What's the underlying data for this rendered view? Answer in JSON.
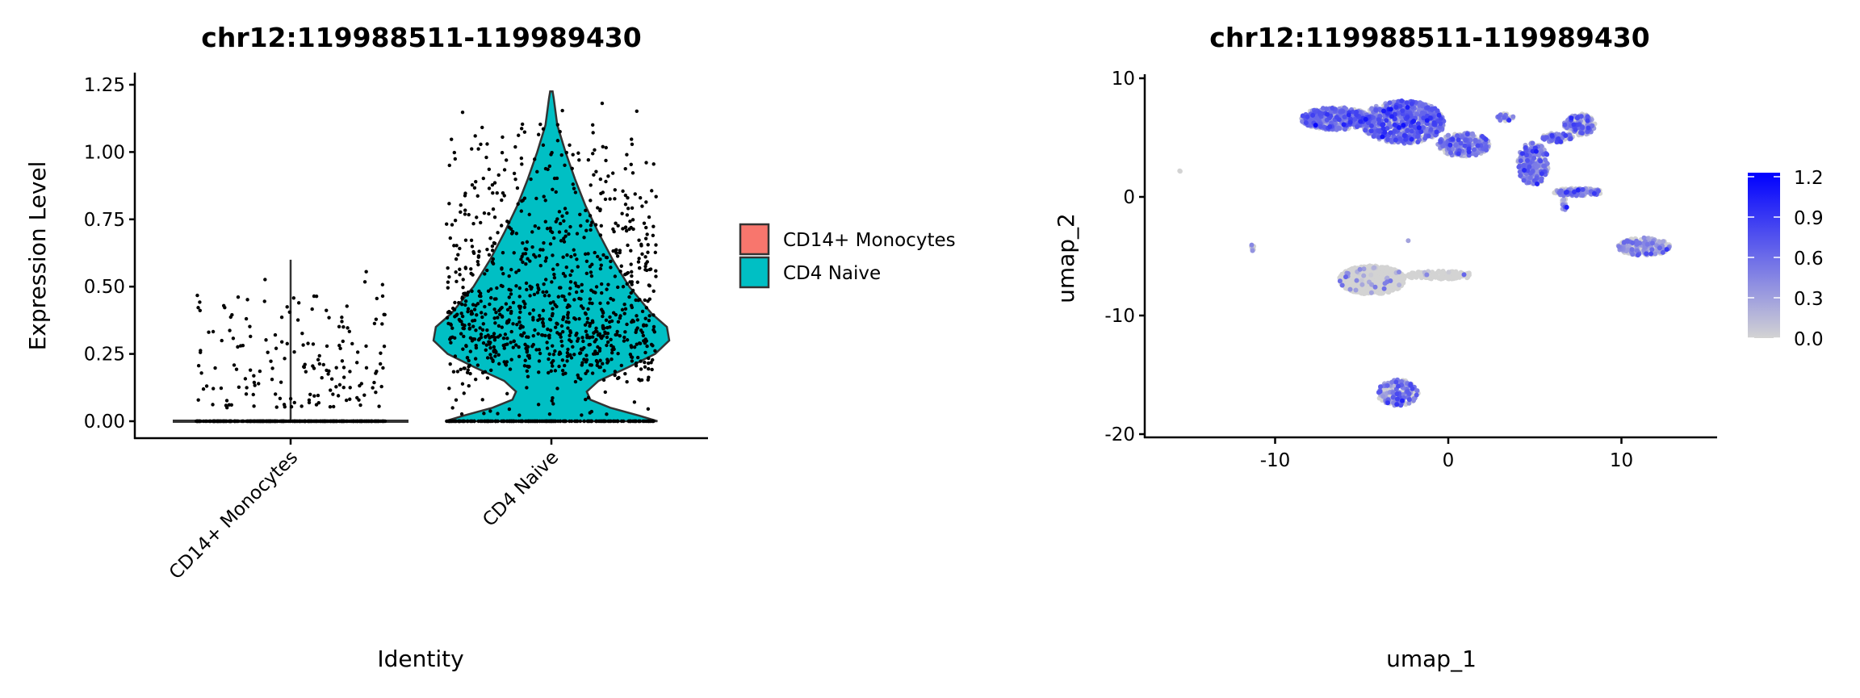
{
  "chart_data": [
    {
      "type": "violin",
      "title": "chr12:119988511-119989430",
      "xlabel": "Identity",
      "ylabel": "Expression Level",
      "ylim": [
        -0.05,
        1.28
      ],
      "yticks": [
        0,
        0.25,
        0.5,
        0.75,
        1.0,
        1.25
      ],
      "ytick_labels": [
        "0.00",
        "0.25",
        "0.50",
        "0.75",
        "1.00",
        "1.25"
      ],
      "categories": [
        "CD14+ Monocytes",
        "CD4 Naive"
      ],
      "colors": [
        "#F8766D",
        "#00BFC4"
      ],
      "legend": {
        "position": "right",
        "entries": [
          "CD14+ Monocytes",
          "CD4 Naive"
        ]
      },
      "groups": [
        {
          "name": "CD14+ Monocytes",
          "n_zero": 300,
          "n_nonzero": 170,
          "nonzero_range": [
            0.05,
            0.6
          ],
          "max": 0.6,
          "density": [
            [
              0,
              1.0
            ],
            [
              0.005,
              0.02
            ],
            [
              0.6,
              0.02
            ]
          ]
        },
        {
          "name": "CD4 Naive",
          "n_zero": 220,
          "n_nonzero": 1000,
          "max": 1.225,
          "density": [
            [
              0,
              0.9
            ],
            [
              0.02,
              0.75
            ],
            [
              0.05,
              0.5
            ],
            [
              0.08,
              0.33
            ],
            [
              0.11,
              0.3
            ],
            [
              0.15,
              0.4
            ],
            [
              0.2,
              0.65
            ],
            [
              0.25,
              0.88
            ],
            [
              0.3,
              1.0
            ],
            [
              0.35,
              0.98
            ],
            [
              0.4,
              0.85
            ],
            [
              0.5,
              0.66
            ],
            [
              0.6,
              0.52
            ],
            [
              0.7,
              0.4
            ],
            [
              0.8,
              0.29
            ],
            [
              0.9,
              0.2
            ],
            [
              1.0,
              0.12
            ],
            [
              1.1,
              0.05
            ],
            [
              1.2,
              0.02
            ],
            [
              1.225,
              0.01
            ]
          ]
        }
      ]
    },
    {
      "type": "scatter",
      "title": "chr12:119988511-119989430",
      "xlabel": "umap_1",
      "ylabel": "umap_2",
      "xlim": [
        -17.6,
        15.6
      ],
      "ylim": [
        -20.3,
        10.3
      ],
      "xticks": [
        -10,
        0,
        10
      ],
      "xtick_labels": [
        "-10",
        "0",
        "10"
      ],
      "yticks": [
        10,
        0,
        -10,
        -20
      ],
      "ytick_labels": [
        "10",
        "0",
        "-10",
        "-20"
      ],
      "colorbar": {
        "low": "#D3D3D3",
        "high": "#0000FF",
        "range": [
          0,
          1.23
        ],
        "ticks": [
          0,
          0.3,
          0.6,
          0.9,
          1.2
        ],
        "tick_labels": [
          "0.0",
          "0.3",
          "0.6",
          "0.9",
          "1.2"
        ],
        "position": "right"
      },
      "clusters": [
        {
          "center": [
            -6.5,
            6.6
          ],
          "radius": [
            2.0,
            0.95
          ],
          "n": 500,
          "p_expr": 0.7,
          "mean": 0.5
        },
        {
          "center": [
            -2.6,
            6.3
          ],
          "radius": [
            2.4,
            1.8
          ],
          "n": 900,
          "p_expr": 0.7,
          "mean": 0.5
        },
        {
          "center": [
            0.9,
            4.4
          ],
          "radius": [
            1.5,
            1.0
          ],
          "n": 250,
          "p_expr": 0.65,
          "mean": 0.45
        },
        {
          "center": [
            3.3,
            6.7
          ],
          "radius": [
            0.45,
            0.35
          ],
          "n": 30,
          "p_expr": 0.5,
          "mean": 0.4
        },
        {
          "center": [
            4.9,
            2.8
          ],
          "radius": [
            0.9,
            1.8
          ],
          "n": 300,
          "p_expr": 0.6,
          "mean": 0.45
        },
        {
          "center": [
            6.3,
            5.0
          ],
          "radius": [
            0.9,
            0.4
          ],
          "n": 60,
          "p_expr": 0.6,
          "mean": 0.45
        },
        {
          "center": [
            7.6,
            6.1
          ],
          "radius": [
            0.9,
            0.9
          ],
          "n": 200,
          "p_expr": 0.55,
          "mean": 0.4
        },
        {
          "center": [
            7.5,
            0.4
          ],
          "radius": [
            1.4,
            0.35
          ],
          "n": 150,
          "p_expr": 0.55,
          "mean": 0.4
        },
        {
          "center": [
            6.7,
            -0.6
          ],
          "radius": [
            0.2,
            0.5
          ],
          "n": 20,
          "p_expr": 0.6,
          "mean": 0.45
        },
        {
          "center": [
            11.3,
            -4.2
          ],
          "radius": [
            1.5,
            0.75
          ],
          "n": 300,
          "p_expr": 0.45,
          "mean": 0.3
        },
        {
          "center": [
            -4.4,
            -7.0
          ],
          "radius": [
            1.9,
            1.2
          ],
          "n": 900,
          "p_expr": 0.03,
          "mean": 0.3
        },
        {
          "center": [
            -0.5,
            -6.6
          ],
          "radius": [
            2.1,
            0.35
          ],
          "n": 150,
          "p_expr": 0.03,
          "mean": 0.3
        },
        {
          "center": [
            -2.9,
            -16.5
          ],
          "radius": [
            1.2,
            1.1
          ],
          "n": 200,
          "p_expr": 0.6,
          "mean": 0.45
        },
        {
          "center": [
            -15.5,
            2.2
          ],
          "radius": [
            0.05,
            0.05
          ],
          "n": 2,
          "p_expr": 0.2,
          "mean": 0.2
        },
        {
          "center": [
            -11.3,
            -4.2
          ],
          "radius": [
            0.08,
            0.4
          ],
          "n": 6,
          "p_expr": 0.3,
          "mean": 0.2
        },
        {
          "center": [
            -2.3,
            -3.7
          ],
          "radius": [
            0.02,
            0.02
          ],
          "n": 1,
          "p_expr": 1,
          "mean": 0.3
        }
      ]
    }
  ]
}
